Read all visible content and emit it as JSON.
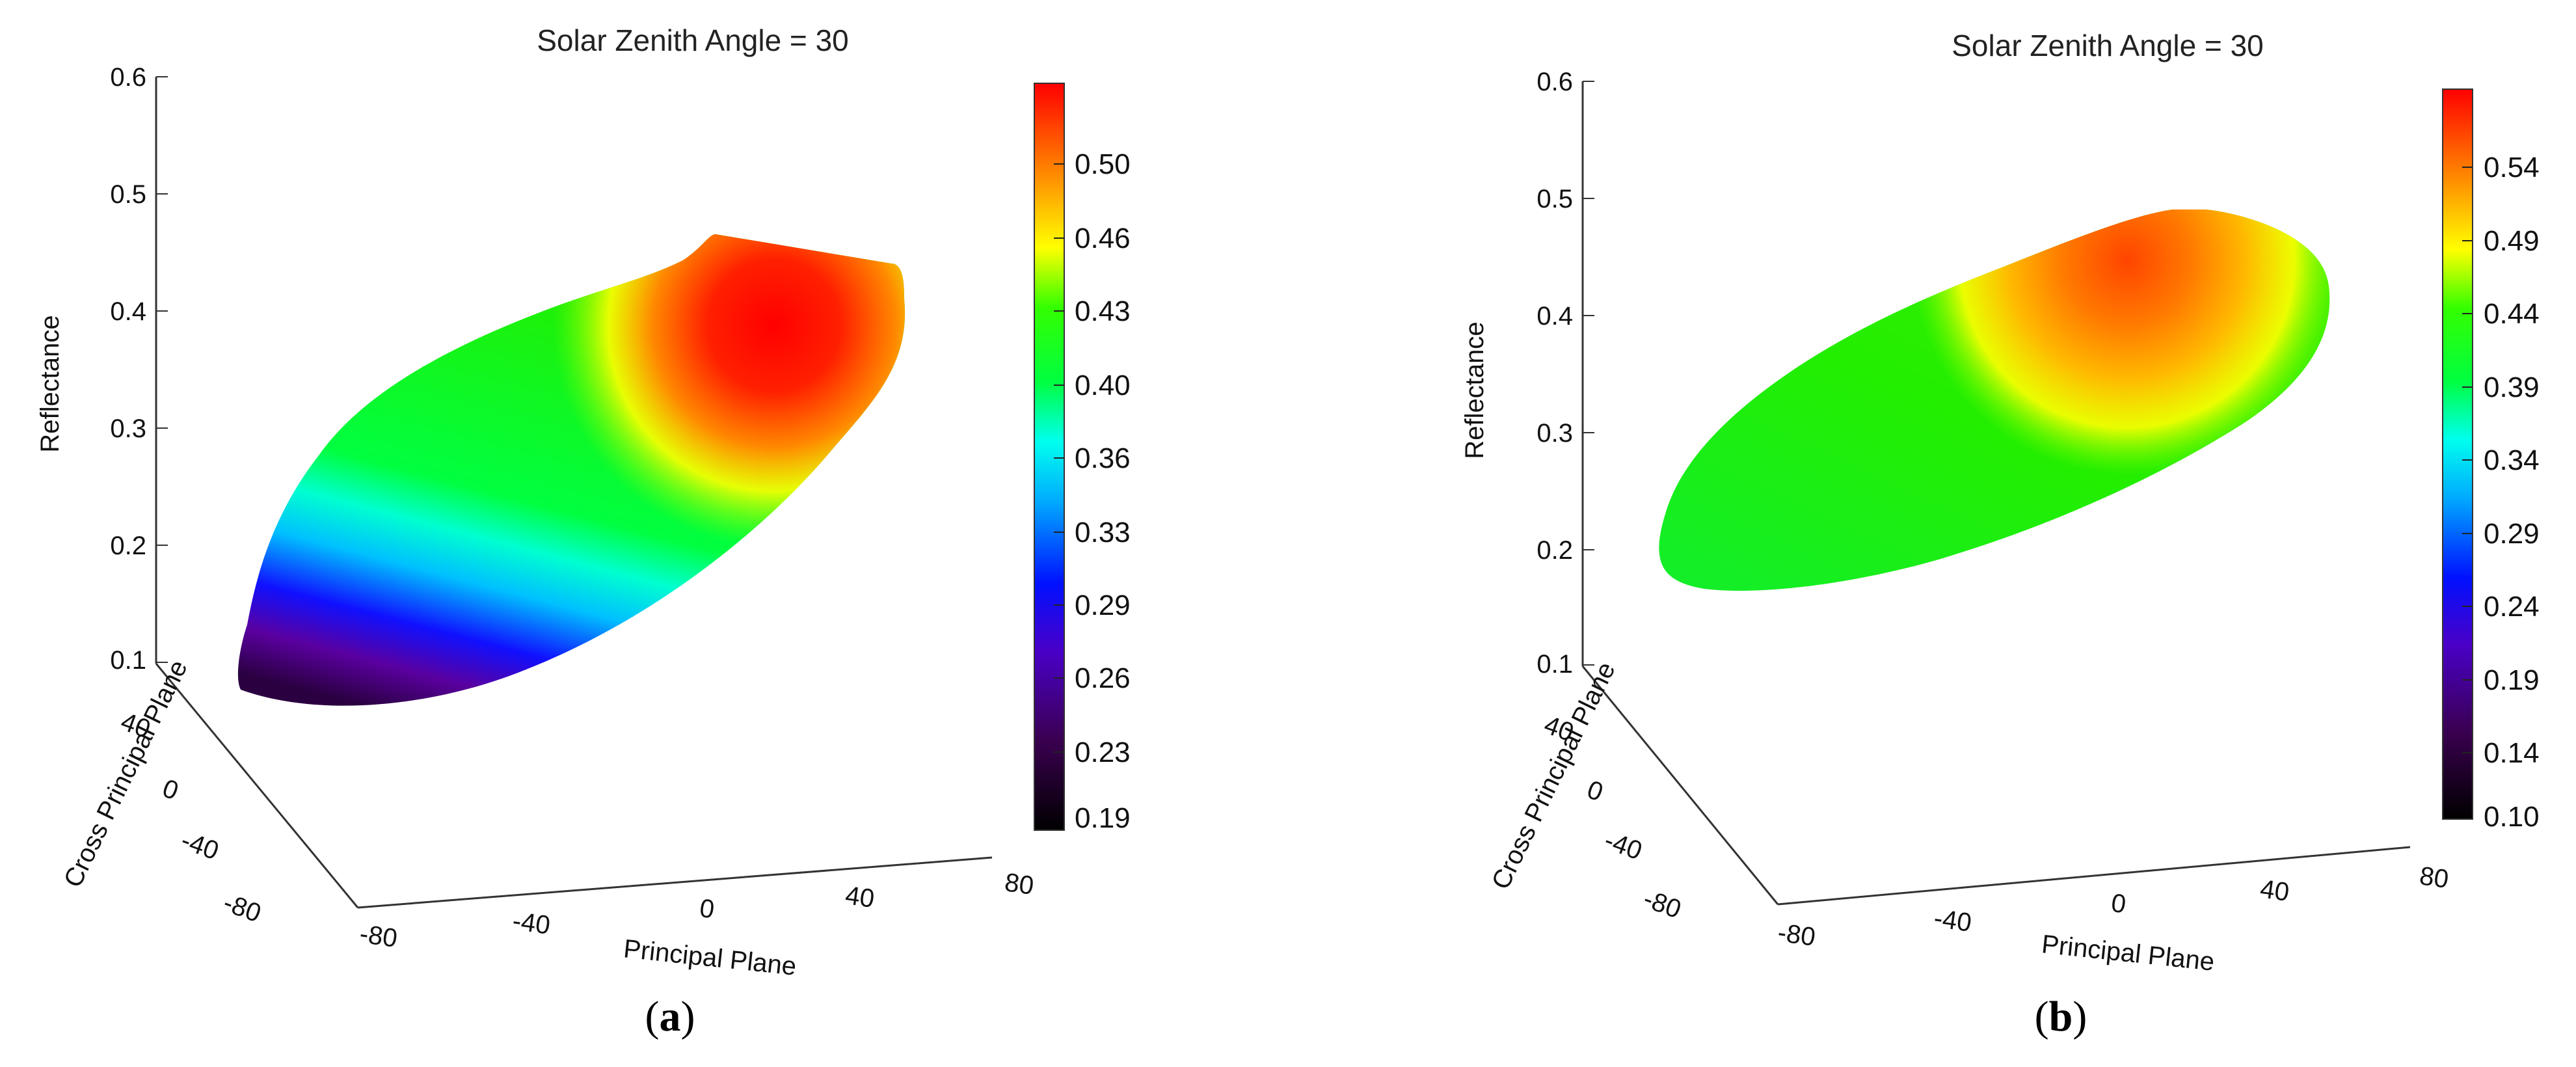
{
  "chart_data": [
    {
      "type": "surface3d",
      "panel": "a",
      "caption_open": "(",
      "caption_letter": "a",
      "caption_close": ")",
      "title": "Solar Zenith Angle = 30",
      "zlabel": "Reflectance",
      "xlabel": "Principal Plane",
      "ylabel": "Cross Principal Plane",
      "z_ticks": [
        "0.1",
        "0.2",
        "0.3",
        "0.4",
        "0.5",
        "0.6"
      ],
      "x_ticks": [
        "-80",
        "-40",
        "0",
        "40",
        "80"
      ],
      "y_ticks": [
        "-80",
        "-40",
        "0",
        "40"
      ],
      "zlim": [
        0.1,
        0.6
      ],
      "xlim": [
        -80,
        80
      ],
      "ylim": [
        -80,
        80
      ],
      "colorbar": {
        "range": [
          0.19,
          0.53
        ],
        "ticks": [
          "0.50",
          "0.46",
          "0.43",
          "0.40",
          "0.36",
          "0.33",
          "0.29",
          "0.26",
          "0.23",
          "0.19"
        ]
      },
      "surface_summary": {
        "min_reflectance": 0.19,
        "max_reflectance": 0.53,
        "peak_location": "forward (x≈+40, y≈0), hotspot"
      }
    },
    {
      "type": "surface3d",
      "panel": "b",
      "caption_open": "(",
      "caption_letter": "b",
      "caption_close": ")",
      "title": "Solar Zenith Angle = 30",
      "zlabel": "Reflectance",
      "xlabel": "Principal Plane",
      "ylabel": "Cross Principal Plane",
      "z_ticks": [
        "0.1",
        "0.2",
        "0.3",
        "0.4",
        "0.5",
        "0.6"
      ],
      "x_ticks": [
        "-80",
        "-40",
        "0",
        "40",
        "80"
      ],
      "y_ticks": [
        "-80",
        "-40",
        "0",
        "40"
      ],
      "zlim": [
        0.1,
        0.6
      ],
      "xlim": [
        -80,
        80
      ],
      "ylim": [
        -80,
        80
      ],
      "colorbar": {
        "range": [
          0.1,
          0.58
        ],
        "ticks": [
          "0.54",
          "0.49",
          "0.44",
          "0.39",
          "0.34",
          "0.29",
          "0.24",
          "0.19",
          "0.14",
          "0.10"
        ]
      },
      "surface_summary": {
        "min_reflectance": 0.36,
        "max_reflectance": 0.56,
        "peak_location": "forward (x≈+40, y≈0), hotspot"
      }
    }
  ]
}
